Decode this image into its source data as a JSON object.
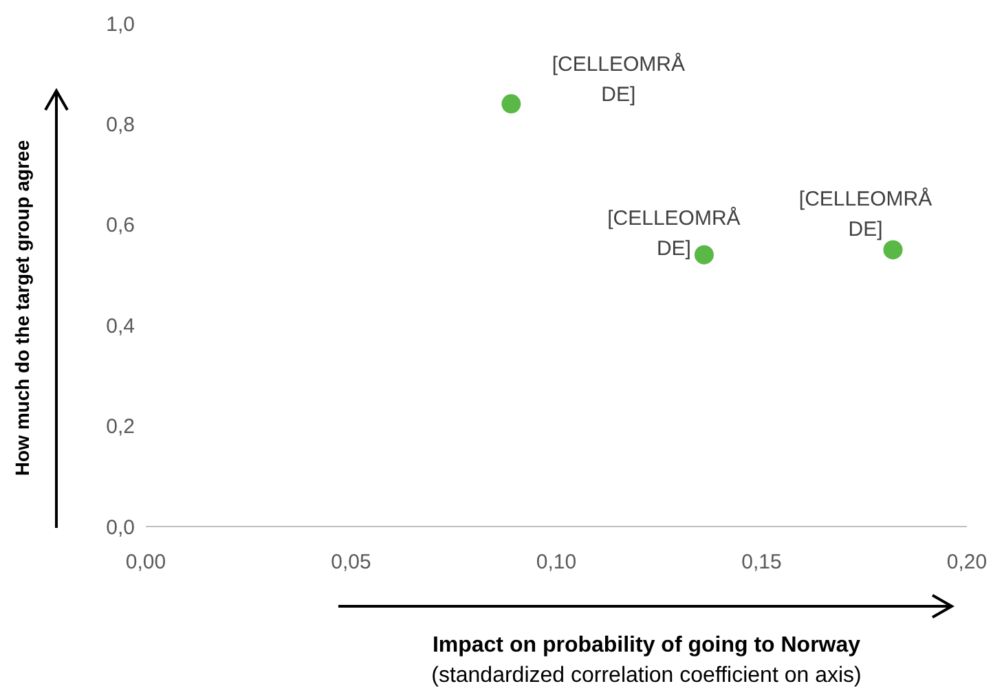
{
  "chart_data": {
    "type": "scatter",
    "xlabel": "Impact on probability of going to Norway",
    "annotations": [
      "(standardized correlation coefficient on axis)"
    ],
    "ylabel": "How much do the target group agree",
    "x": [
      0.089,
      0.136,
      0.182
    ],
    "values": [
      0.84,
      0.54,
      0.55
    ],
    "color": "#5ab946",
    "value_labels": [
      "[CELLEOMRÅDE]",
      "[CELLEOMRÅDE]",
      "[CELLEOMRÅDE]"
    ],
    "marker": "circle",
    "xlim": [
      0,
      0.2
    ],
    "xticks": [
      {
        "value": 0,
        "label": "0,00"
      },
      {
        "value": 0.05,
        "label": "0,05"
      },
      {
        "value": 0.1,
        "label": "0,10"
      },
      {
        "value": 0.15,
        "label": "0,15"
      },
      {
        "value": 0.2,
        "label": "0,20"
      }
    ],
    "ylim": [
      0,
      1
    ],
    "yticks": [
      {
        "value": 0,
        "label": "0,0"
      },
      {
        "value": 0.2,
        "label": "0,2"
      },
      {
        "value": 0.4,
        "label": "0,4"
      },
      {
        "value": 0.6,
        "label": "0,6"
      },
      {
        "value": 0.8,
        "label": "0,8"
      },
      {
        "value": 1,
        "label": "1,0"
      }
    ],
    "grid": false,
    "legend": false
  }
}
